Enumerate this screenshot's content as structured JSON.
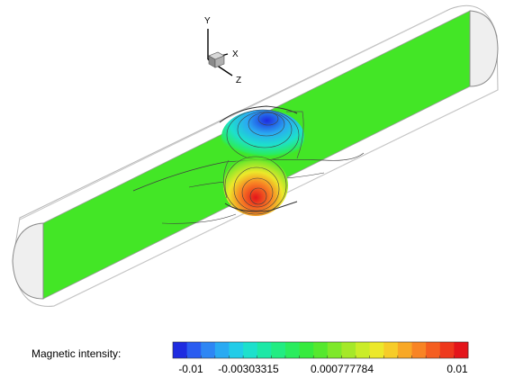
{
  "axes_triad": {
    "y_label": "Y",
    "x_label": "X",
    "z_label": "Z"
  },
  "legend": {
    "title": "Magnetic intensity:",
    "min": -0.01,
    "max": 0.01,
    "tick_labels": [
      "-0.01",
      "-0.00303315",
      "0.000777784",
      "0.01"
    ],
    "tick_values": [
      -0.01,
      -0.00303315,
      0.000777784,
      0.01
    ],
    "levels": 21,
    "colors": [
      "#1e2be0",
      "#2a5cf0",
      "#2e86f4",
      "#2aaaf2",
      "#22cce8",
      "#1de0cc",
      "#1de8a6",
      "#22ec82",
      "#2aec5e",
      "#36ea3e",
      "#55e82e",
      "#7ee82a",
      "#a5e828",
      "#caec28",
      "#ece82a",
      "#f6cc28",
      "#f8a826",
      "#f88424",
      "#f45e20",
      "#ee381c",
      "#e4141a"
    ]
  },
  "colors": {
    "field_background": "#43e626",
    "cylinder_outline": "#b8b8b8",
    "end_cap_fill": "#f2f2f2",
    "contour_line": "#404040"
  }
}
